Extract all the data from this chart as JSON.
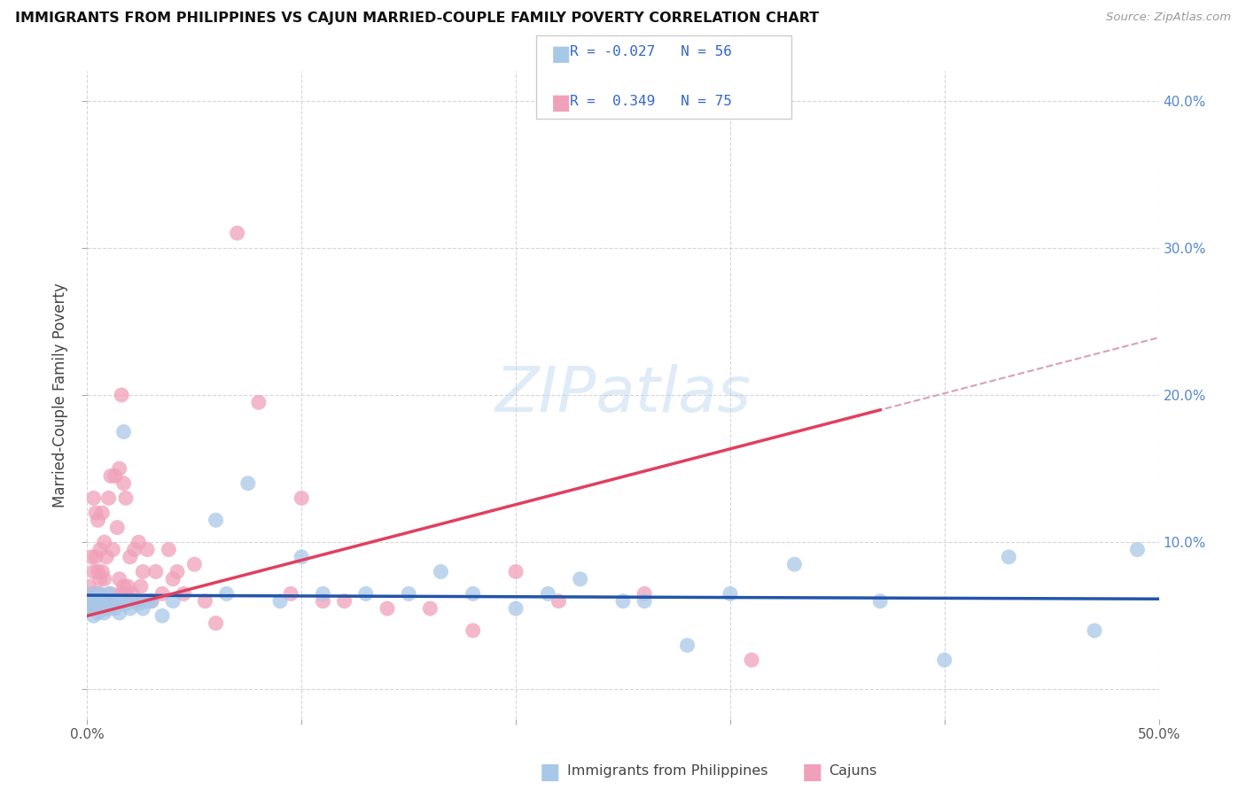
{
  "title": "IMMIGRANTS FROM PHILIPPINES VS CAJUN MARRIED-COUPLE FAMILY POVERTY CORRELATION CHART",
  "source": "Source: ZipAtlas.com",
  "ylabel": "Married-Couple Family Poverty",
  "legend_label1": "Immigrants from Philippines",
  "legend_label2": "Cajuns",
  "r1": "-0.027",
  "n1": "56",
  "r2": "0.349",
  "n2": "75",
  "color_blue": "#a8c8e8",
  "color_pink": "#f0a0b8",
  "line_blue": "#2255aa",
  "line_pink": "#e04060",
  "line_dashed_color": "#d8a0b8",
  "xlim": [
    0.0,
    0.5
  ],
  "ylim": [
    -0.02,
    0.42
  ],
  "blue_points_x": [
    0.001,
    0.002,
    0.002,
    0.003,
    0.003,
    0.004,
    0.004,
    0.005,
    0.005,
    0.006,
    0.006,
    0.007,
    0.007,
    0.008,
    0.009,
    0.01,
    0.01,
    0.011,
    0.012,
    0.013,
    0.014,
    0.015,
    0.016,
    0.017,
    0.018,
    0.02,
    0.022,
    0.024,
    0.026,
    0.028,
    0.03,
    0.035,
    0.04,
    0.06,
    0.065,
    0.075,
    0.09,
    0.1,
    0.11,
    0.13,
    0.15,
    0.165,
    0.18,
    0.2,
    0.215,
    0.23,
    0.25,
    0.26,
    0.28,
    0.3,
    0.33,
    0.37,
    0.4,
    0.43,
    0.47,
    0.49
  ],
  "blue_points_y": [
    0.06,
    0.055,
    0.065,
    0.058,
    0.05,
    0.062,
    0.055,
    0.06,
    0.052,
    0.058,
    0.065,
    0.055,
    0.06,
    0.052,
    0.06,
    0.065,
    0.055,
    0.058,
    0.06,
    0.055,
    0.06,
    0.052,
    0.06,
    0.175,
    0.058,
    0.055,
    0.06,
    0.058,
    0.055,
    0.06,
    0.06,
    0.05,
    0.06,
    0.115,
    0.065,
    0.14,
    0.06,
    0.09,
    0.065,
    0.065,
    0.065,
    0.08,
    0.065,
    0.055,
    0.065,
    0.075,
    0.06,
    0.06,
    0.03,
    0.065,
    0.085,
    0.06,
    0.02,
    0.09,
    0.04,
    0.095
  ],
  "pink_points_x": [
    0.001,
    0.001,
    0.002,
    0.002,
    0.003,
    0.003,
    0.003,
    0.004,
    0.004,
    0.004,
    0.005,
    0.005,
    0.005,
    0.006,
    0.006,
    0.006,
    0.007,
    0.007,
    0.007,
    0.008,
    0.008,
    0.008,
    0.009,
    0.009,
    0.01,
    0.01,
    0.011,
    0.011,
    0.012,
    0.012,
    0.013,
    0.013,
    0.014,
    0.014,
    0.015,
    0.015,
    0.016,
    0.016,
    0.017,
    0.017,
    0.018,
    0.018,
    0.019,
    0.02,
    0.021,
    0.022,
    0.023,
    0.024,
    0.025,
    0.026,
    0.027,
    0.028,
    0.03,
    0.032,
    0.035,
    0.038,
    0.04,
    0.042,
    0.045,
    0.05,
    0.055,
    0.06,
    0.07,
    0.08,
    0.095,
    0.1,
    0.11,
    0.12,
    0.14,
    0.16,
    0.18,
    0.2,
    0.22,
    0.26,
    0.31
  ],
  "pink_points_y": [
    0.06,
    0.07,
    0.055,
    0.09,
    0.065,
    0.08,
    0.13,
    0.06,
    0.09,
    0.12,
    0.065,
    0.08,
    0.115,
    0.055,
    0.075,
    0.095,
    0.06,
    0.08,
    0.12,
    0.055,
    0.075,
    0.1,
    0.06,
    0.09,
    0.055,
    0.13,
    0.065,
    0.145,
    0.06,
    0.095,
    0.06,
    0.145,
    0.06,
    0.11,
    0.075,
    0.15,
    0.065,
    0.2,
    0.07,
    0.14,
    0.065,
    0.13,
    0.07,
    0.09,
    0.065,
    0.095,
    0.06,
    0.1,
    0.07,
    0.08,
    0.06,
    0.095,
    0.06,
    0.08,
    0.065,
    0.095,
    0.075,
    0.08,
    0.065,
    0.085,
    0.06,
    0.045,
    0.31,
    0.195,
    0.065,
    0.13,
    0.06,
    0.06,
    0.055,
    0.055,
    0.04,
    0.08,
    0.06,
    0.065,
    0.02
  ],
  "background_color": "#ffffff",
  "grid_color": "#cccccc"
}
